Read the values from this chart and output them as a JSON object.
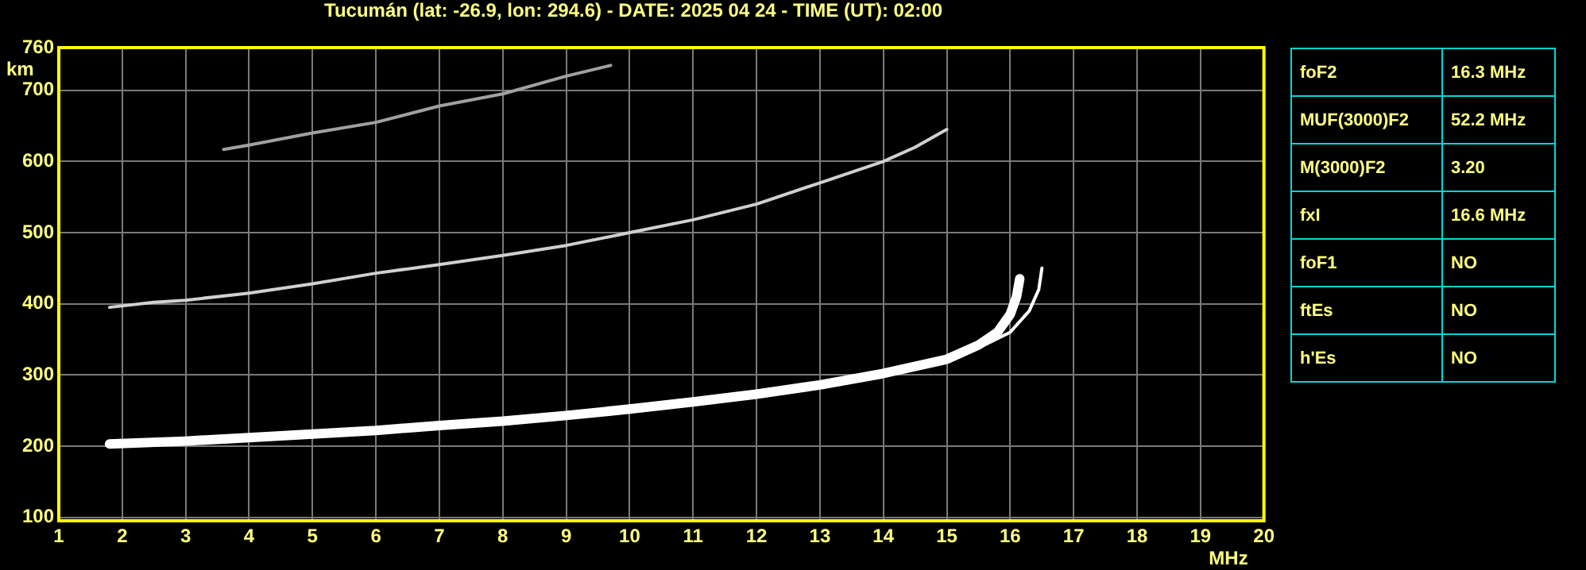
{
  "chart_data": [
    {
      "type": "line",
      "title": "Tucumán (lat: -26.9, lon: 294.6) - DATE: 2025 04 24 - TIME (UT): 02:00",
      "xlabel": "MHz",
      "ylabel": "km",
      "xlim": [
        1,
        20
      ],
      "ylim": [
        95,
        760
      ],
      "xticks": [
        1,
        2,
        3,
        4,
        5,
        6,
        7,
        8,
        9,
        10,
        11,
        12,
        13,
        14,
        15,
        16,
        17,
        18,
        19,
        20
      ],
      "yticks": [
        100,
        200,
        300,
        400,
        500,
        600,
        700,
        760
      ],
      "grid": true,
      "marker": "none",
      "line_style": "solid",
      "series": [
        {
          "color": "#ffffff",
          "x": [
            1.8,
            3,
            4,
            5,
            6,
            7,
            8,
            9,
            10,
            11,
            12,
            13,
            14,
            15,
            15.5,
            15.8,
            16,
            16.1,
            16.15
          ],
          "values": [
            203,
            207,
            212,
            217,
            222,
            229,
            235,
            243,
            252,
            262,
            273,
            286,
            302,
            322,
            342,
            360,
            385,
            410,
            435
          ]
        },
        {
          "color": "#ffffff",
          "x": [
            15.5,
            16,
            16.3,
            16.45,
            16.5
          ],
          "values": [
            338,
            360,
            390,
            420,
            450
          ]
        },
        {
          "color": "#d0d0d0",
          "x": [
            1.8,
            2.5,
            3,
            4,
            5,
            6,
            7,
            8,
            9,
            10,
            11,
            12,
            13,
            14,
            14.5,
            15
          ],
          "values": [
            395,
            402,
            405,
            415,
            428,
            443,
            455,
            468,
            482,
            500,
            518,
            540,
            570,
            600,
            620,
            645
          ]
        },
        {
          "color": "#a0a0a0",
          "x": [
            3.6,
            4,
            5,
            6,
            7,
            8,
            9,
            9.7
          ],
          "values": [
            617,
            623,
            640,
            655,
            678,
            695,
            720,
            735
          ]
        }
      ]
    },
    {
      "type": "other",
      "annotations": [
        "foF2",
        "16.3 MHz",
        "MUF(3000)F2",
        "52.2 MHz",
        "M(3000)F2",
        "3.20",
        "fxI",
        "16.6 MHz",
        "foF1",
        "NO",
        "ftEs",
        "NO",
        "h'Es",
        "NO"
      ]
    }
  ]
}
